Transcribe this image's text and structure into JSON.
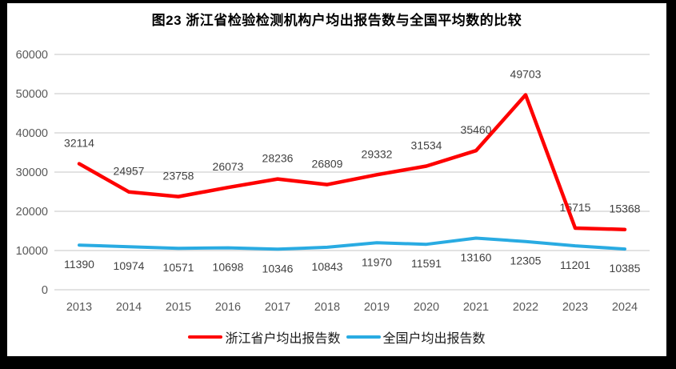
{
  "chart_data": {
    "type": "line",
    "title": "图23  浙江省检验检测机构户均出报告数与全国平均数的比较",
    "categories": [
      "2013",
      "2014",
      "2015",
      "2016",
      "2017",
      "2018",
      "2019",
      "2020",
      "2021",
      "2022",
      "2023",
      "2024"
    ],
    "series": [
      {
        "name": "浙江省户均出报告数",
        "color": "#fe0000",
        "stroke_width": 4.5,
        "label_position": "above",
        "values": [
          32114,
          24957,
          23758,
          26073,
          28236,
          26809,
          29332,
          31534,
          35460,
          49703,
          15715,
          15368
        ]
      },
      {
        "name": "全国户均出报告数",
        "color": "#29abe2",
        "stroke_width": 4,
        "label_position": "below",
        "values": [
          11390,
          10974,
          10571,
          10698,
          10346,
          10843,
          11970,
          11591,
          13160,
          12305,
          11201,
          10385
        ]
      }
    ],
    "xlabel": "",
    "ylabel": "",
    "ylim": [
      0,
      60000
    ],
    "ytick_interval": 10000,
    "yticks": [
      "0",
      "10000",
      "20000",
      "30000",
      "40000",
      "50000",
      "60000"
    ],
    "grid": "horizontal",
    "legend_position": "bottom",
    "colors": {
      "gridline": "#d9d9d9",
      "axis_label": "#595959",
      "data_label": "#404040",
      "title": "#000000",
      "frame": "#000000",
      "background": "#ffffff"
    }
  }
}
